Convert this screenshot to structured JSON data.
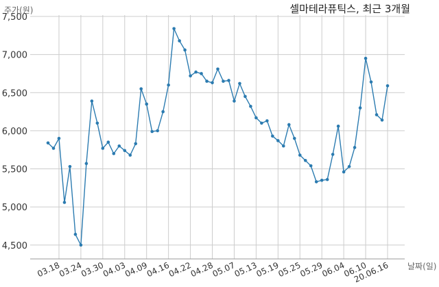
{
  "chart_data": {
    "type": "line",
    "title": "셀마테라퓨틱스, 최근 3개월",
    "ylabel": "주가(원)",
    "xlabel": "날짜(일)",
    "ylim": [
      4300,
      7500
    ],
    "yticks": [
      4500,
      5000,
      5500,
      6000,
      6500,
      7000,
      7500
    ],
    "ytick_labels": [
      "4,500",
      "5,000",
      "5,500",
      "6,000",
      "6,500",
      "7,000",
      "7,500"
    ],
    "xtick_labels": [
      "03.18",
      "03.24",
      "03.30",
      "04.03",
      "04.09",
      "04.16",
      "04.22",
      "04.28",
      "05.07",
      "05.13",
      "05.19",
      "05.25",
      "05.29",
      "06.04",
      "06.10",
      "20.06.16"
    ],
    "xtick_index": [
      2,
      6,
      10,
      14,
      18,
      22,
      26,
      30,
      34,
      38,
      42,
      46,
      50,
      54,
      58,
      62
    ],
    "grid": true,
    "series": [
      {
        "color": "#2b7bb0",
        "values": [
          5840,
          5770,
          5900,
          5060,
          5530,
          4640,
          4500,
          5570,
          6390,
          6100,
          5770,
          5850,
          5700,
          5800,
          5740,
          5680,
          5830,
          6550,
          6350,
          5990,
          6000,
          6250,
          6600,
          7340,
          7180,
          7060,
          6720,
          6770,
          6750,
          6650,
          6630,
          6810,
          6650,
          6660,
          6390,
          6620,
          6450,
          6320,
          6170,
          6100,
          6130,
          5930,
          5870,
          5800,
          6080,
          5900,
          5680,
          5610,
          5540,
          5330,
          5350,
          5360,
          5690,
          6060,
          5460,
          5530,
          5780,
          6300,
          6950,
          6640,
          6210,
          6140,
          6590
        ]
      }
    ]
  }
}
